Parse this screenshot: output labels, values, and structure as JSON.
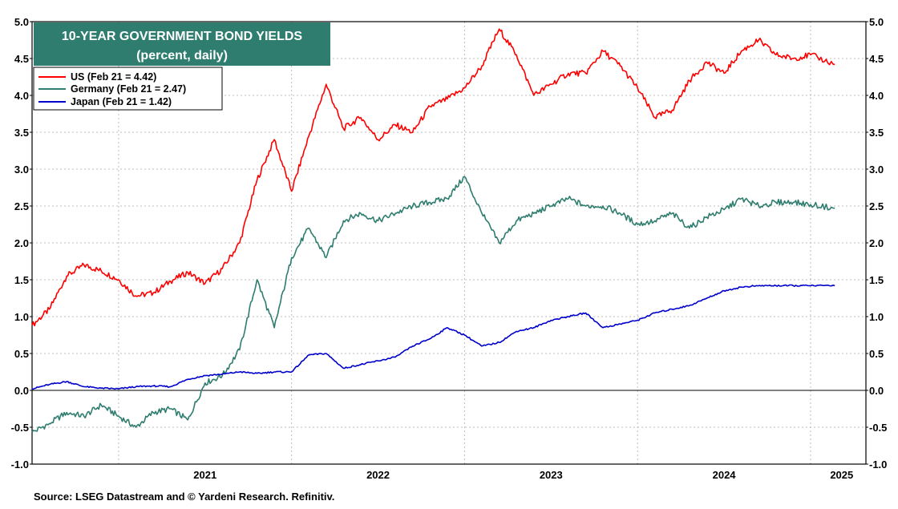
{
  "chart_data": {
    "type": "line",
    "title": "10-YEAR GOVERNMENT BOND YIELDS",
    "subtitle": "(percent, daily)",
    "source": "Source: LSEG Datastream and © Yardeni Research. Refinitiv.",
    "ylim": [
      -1.0,
      5.0
    ],
    "ytick_labels": [
      "5.0",
      "4.5",
      "4.0",
      "3.5",
      "3.0",
      "2.5",
      "2.0",
      "1.5",
      "1.0",
      "0.5",
      "0.0",
      "-0.5",
      "-1.0"
    ],
    "year_labels": [
      "2021",
      "2022",
      "2023",
      "2024",
      "2025"
    ],
    "grid": true,
    "legend_position": "top-left",
    "x": [
      2020.5,
      2020.6,
      2020.7,
      2020.8,
      2020.9,
      2021.0,
      2021.1,
      2021.2,
      2021.3,
      2021.4,
      2021.5,
      2021.6,
      2021.7,
      2021.8,
      2021.9,
      2022.0,
      2022.1,
      2022.2,
      2022.3,
      2022.4,
      2022.5,
      2022.6,
      2022.7,
      2022.8,
      2022.9,
      2023.0,
      2023.1,
      2023.2,
      2023.3,
      2023.4,
      2023.5,
      2023.6,
      2023.7,
      2023.8,
      2023.9,
      2024.0,
      2024.1,
      2024.2,
      2024.3,
      2024.4,
      2024.5,
      2024.6,
      2024.7,
      2024.8,
      2024.9,
      2025.0,
      2025.14
    ],
    "series": [
      {
        "name": "US (Feb 21 = 4.42)",
        "color": "#ff0000",
        "values": [
          0.88,
          1.1,
          1.55,
          1.7,
          1.62,
          1.5,
          1.28,
          1.32,
          1.48,
          1.6,
          1.45,
          1.65,
          2.0,
          2.85,
          3.4,
          2.7,
          3.45,
          4.15,
          3.55,
          3.7,
          3.4,
          3.6,
          3.5,
          3.85,
          3.95,
          4.1,
          4.4,
          4.9,
          4.55,
          4.0,
          4.15,
          4.3,
          4.3,
          4.6,
          4.4,
          4.1,
          3.7,
          3.8,
          4.2,
          4.45,
          4.3,
          4.6,
          4.75,
          4.55,
          4.5,
          4.55,
          4.42
        ]
      },
      {
        "name": "Germany (Feb 21 = 2.47)",
        "color": "#2e7d6f",
        "values": [
          -0.57,
          -0.45,
          -0.3,
          -0.35,
          -0.2,
          -0.35,
          -0.5,
          -0.3,
          -0.25,
          -0.4,
          0.1,
          0.2,
          0.55,
          1.5,
          0.85,
          1.8,
          2.2,
          1.8,
          2.3,
          2.4,
          2.3,
          2.4,
          2.5,
          2.55,
          2.6,
          2.9,
          2.4,
          2.0,
          2.3,
          2.4,
          2.5,
          2.6,
          2.5,
          2.5,
          2.4,
          2.25,
          2.3,
          2.4,
          2.2,
          2.35,
          2.45,
          2.6,
          2.5,
          2.55,
          2.55,
          2.52,
          2.47
        ]
      },
      {
        "name": "Japan (Feb 21 = 1.42)",
        "color": "#0000cc",
        "values": [
          0.02,
          0.08,
          0.12,
          0.05,
          0.03,
          0.02,
          0.05,
          0.06,
          0.05,
          0.15,
          0.2,
          0.22,
          0.25,
          0.23,
          0.25,
          0.25,
          0.48,
          0.5,
          0.3,
          0.35,
          0.4,
          0.45,
          0.6,
          0.7,
          0.85,
          0.75,
          0.6,
          0.65,
          0.8,
          0.85,
          0.95,
          1.0,
          1.05,
          0.85,
          0.9,
          0.95,
          1.05,
          1.1,
          1.15,
          1.25,
          1.35,
          1.4,
          1.42,
          1.42,
          1.42,
          1.42,
          1.42
        ]
      }
    ]
  }
}
